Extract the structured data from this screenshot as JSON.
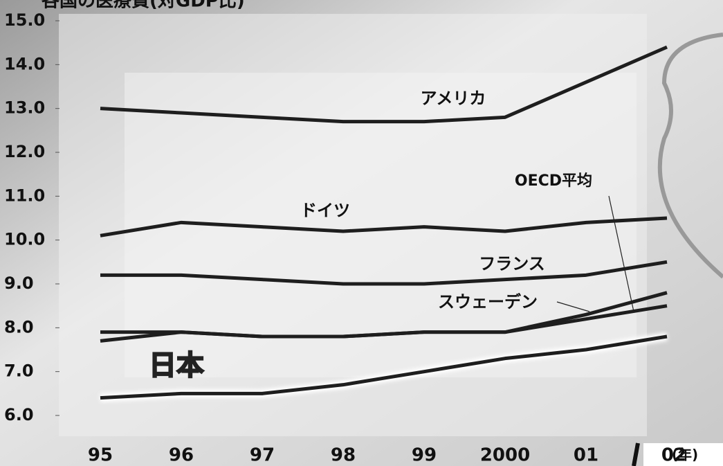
{
  "chart_data": {
    "type": "line",
    "title": "各国の医療費(対GDP比)",
    "x_label": "(年)",
    "categories": [
      "95",
      "96",
      "97",
      "98",
      "99",
      "2000",
      "01",
      "02"
    ],
    "ylim": [
      6,
      15
    ],
    "yticks": [
      {
        "value": 6,
        "label": "6.0"
      },
      {
        "value": 7,
        "label": "7.0"
      },
      {
        "value": 8,
        "label": "8.0"
      },
      {
        "value": 9,
        "label": "9.0"
      },
      {
        "value": 10,
        "label": "10.0"
      },
      {
        "value": 11,
        "label": "11.0"
      },
      {
        "value": 12,
        "label": "12.0"
      },
      {
        "value": 13,
        "label": "13.0"
      },
      {
        "value": 14,
        "label": "14.0"
      },
      {
        "value": 15,
        "label": "15.0"
      }
    ],
    "series": [
      {
        "name": "アメリカ",
        "color": "#1e1e1e",
        "values": [
          13.0,
          12.9,
          12.8,
          12.7,
          12.7,
          12.8,
          13.6,
          14.4
        ]
      },
      {
        "name": "ドイツ",
        "color": "#1e1e1e",
        "values": [
          10.1,
          10.4,
          10.3,
          10.2,
          10.3,
          10.2,
          10.4,
          10.5
        ]
      },
      {
        "name": "フランス",
        "color": "#1e1e1e",
        "values": [
          9.2,
          9.2,
          9.1,
          9.0,
          9.0,
          9.1,
          9.2,
          9.5
        ]
      },
      {
        "name": "スウェーデン",
        "color": "#1e1e1e",
        "values": [
          7.7,
          7.9,
          7.8,
          7.8,
          7.9,
          7.9,
          8.3,
          8.8
        ]
      },
      {
        "name": "OECD平均",
        "color": "#1e1e1e",
        "values": [
          7.9,
          7.9,
          7.8,
          7.8,
          7.9,
          7.9,
          8.2,
          8.5
        ]
      },
      {
        "name": "日本",
        "color": "#1e1e1e",
        "values": [
          6.4,
          6.5,
          6.5,
          6.7,
          7.0,
          7.3,
          7.5,
          7.8
        ]
      }
    ]
  }
}
